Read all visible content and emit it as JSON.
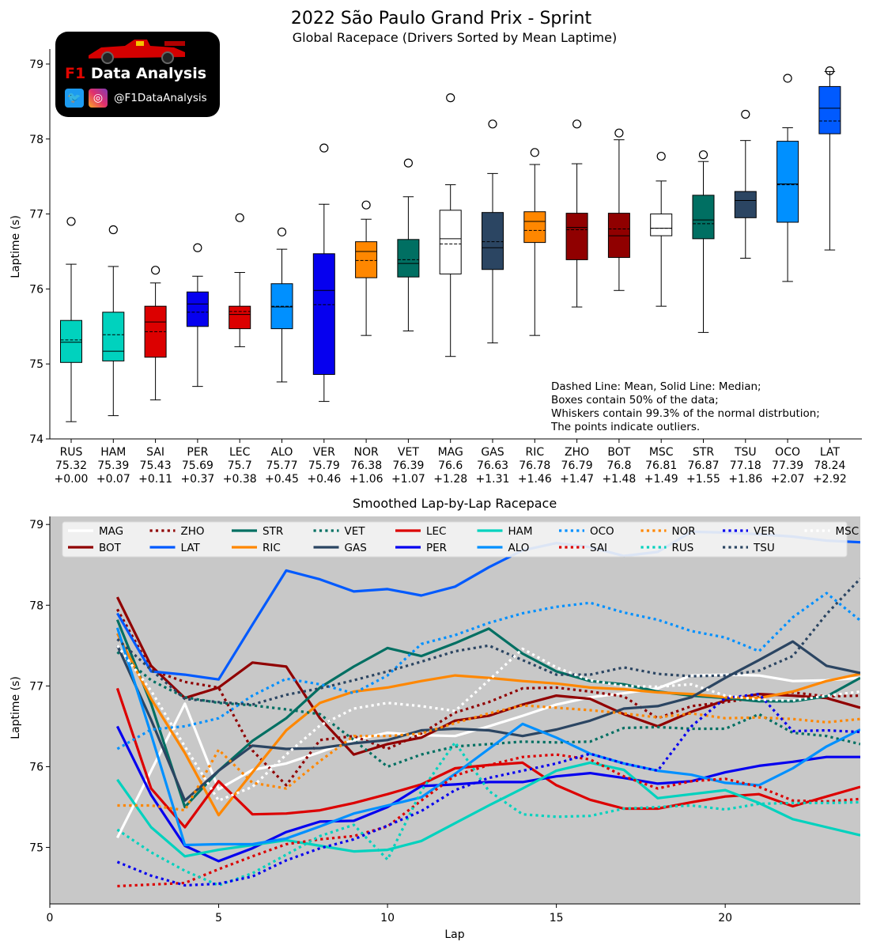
{
  "figure": {
    "title": "2022 São Paulo Grand Prix - Sprint",
    "subtitle": "Global Racepace (Drivers Sorted by Mean Laptime)",
    "logo_brand": "F1",
    "logo_title": "Data Analysis",
    "logo_handle": "@F1DataAnalysis"
  },
  "chart_data": [
    {
      "type": "box",
      "title": "Global Racepace (Drivers Sorted by Mean Laptime)",
      "xlabel": "",
      "ylabel": "Laptime (s)",
      "ylim": [
        74,
        79.2
      ],
      "yticks": [
        74,
        75,
        76,
        77,
        78,
        79
      ],
      "note_lines": [
        "Dashed Line: Mean, Solid Line: Median;",
        "Boxes contain 50% of the data;",
        "Whiskers contain 99.3% of the normal distrbution;",
        "The points indicate outliers."
      ],
      "drivers": [
        {
          "code": "RUS",
          "mean_label": "75.32",
          "delta": "+0.00",
          "color": "#00d2be",
          "whisker_low": 74.23,
          "q1": 75.02,
          "median": 75.29,
          "mean": 75.32,
          "q3": 75.58,
          "whisker_high": 76.33,
          "outliers": [
            76.9
          ]
        },
        {
          "code": "HAM",
          "mean_label": "75.39",
          "delta": "+0.07",
          "color": "#00d2be",
          "whisker_low": 74.31,
          "q1": 75.04,
          "median": 75.17,
          "mean": 75.39,
          "q3": 75.69,
          "whisker_high": 76.3,
          "outliers": [
            76.79
          ]
        },
        {
          "code": "SAI",
          "mean_label": "75.43",
          "delta": "+0.11",
          "color": "#dc0000",
          "whisker_low": 74.52,
          "q1": 75.09,
          "median": 75.56,
          "mean": 75.43,
          "q3": 75.77,
          "whisker_high": 76.08,
          "outliers": [
            76.25
          ]
        },
        {
          "code": "PER",
          "mean_label": "75.69",
          "delta": "+0.37",
          "color": "#0600ef",
          "whisker_low": 74.7,
          "q1": 75.5,
          "median": 75.8,
          "mean": 75.69,
          "q3": 75.96,
          "whisker_high": 76.17,
          "outliers": [
            76.55
          ]
        },
        {
          "code": "LEC",
          "mean_label": "75.7",
          "delta": "+0.38",
          "color": "#dc0000",
          "whisker_low": 75.23,
          "q1": 75.47,
          "median": 75.66,
          "mean": 75.7,
          "q3": 75.77,
          "whisker_high": 76.22,
          "outliers": [
            76.95
          ]
        },
        {
          "code": "ALO",
          "mean_label": "75.77",
          "delta": "+0.45",
          "color": "#0090ff",
          "whisker_low": 74.76,
          "q1": 75.47,
          "median": 75.76,
          "mean": 75.77,
          "q3": 76.07,
          "whisker_high": 76.53,
          "outliers": [
            76.76
          ]
        },
        {
          "code": "VER",
          "mean_label": "75.79",
          "delta": "+0.46",
          "color": "#0600ef",
          "whisker_low": 74.5,
          "q1": 74.86,
          "median": 75.98,
          "mean": 75.79,
          "q3": 76.47,
          "whisker_high": 77.13,
          "outliers": [
            77.88
          ]
        },
        {
          "code": "NOR",
          "mean_label": "76.38",
          "delta": "+1.06",
          "color": "#ff8700",
          "whisker_low": 75.38,
          "q1": 76.15,
          "median": 76.5,
          "mean": 76.38,
          "q3": 76.63,
          "whisker_high": 76.93,
          "outliers": [
            77.12
          ]
        },
        {
          "code": "VET",
          "mean_label": "76.39",
          "delta": "+1.07",
          "color": "#006f62",
          "whisker_low": 75.44,
          "q1": 76.16,
          "median": 76.34,
          "mean": 76.39,
          "q3": 76.66,
          "whisker_high": 77.23,
          "outliers": [
            77.68
          ]
        },
        {
          "code": "MAG",
          "mean_label": "76.6",
          "delta": "+1.28",
          "color": "#ffffff",
          "whisker_low": 75.1,
          "q1": 76.2,
          "median": 76.67,
          "mean": 76.6,
          "q3": 77.05,
          "whisker_high": 77.39,
          "outliers": [
            78.55
          ]
        },
        {
          "code": "GAS",
          "mean_label": "76.63",
          "delta": "+1.31",
          "color": "#2b4562",
          "whisker_low": 75.28,
          "q1": 76.26,
          "median": 76.55,
          "mean": 76.63,
          "q3": 77.02,
          "whisker_high": 77.54,
          "outliers": [
            78.2
          ]
        },
        {
          "code": "RIC",
          "mean_label": "76.78",
          "delta": "+1.46",
          "color": "#ff8700",
          "whisker_low": 75.38,
          "q1": 76.62,
          "median": 76.9,
          "mean": 76.78,
          "q3": 77.03,
          "whisker_high": 77.66,
          "outliers": [
            77.82
          ]
        },
        {
          "code": "ZHO",
          "mean_label": "76.79",
          "delta": "+1.47",
          "color": "#900000",
          "whisker_low": 75.76,
          "q1": 76.39,
          "median": 76.82,
          "mean": 76.79,
          "q3": 77.01,
          "whisker_high": 77.67,
          "outliers": [
            78.2
          ]
        },
        {
          "code": "BOT",
          "mean_label": "76.8",
          "delta": "+1.48",
          "color": "#900000",
          "whisker_low": 75.98,
          "q1": 76.42,
          "median": 76.71,
          "mean": 76.8,
          "q3": 77.01,
          "whisker_high": 77.99,
          "outliers": [
            78.08
          ]
        },
        {
          "code": "MSC",
          "mean_label": "76.81",
          "delta": "+1.49",
          "color": "#ffffff",
          "whisker_low": 75.77,
          "q1": 76.71,
          "median": 76.81,
          "mean": 76.81,
          "q3": 77.0,
          "whisker_high": 77.44,
          "outliers": [
            77.77
          ]
        },
        {
          "code": "STR",
          "mean_label": "76.87",
          "delta": "+1.55",
          "color": "#006f62",
          "whisker_low": 75.42,
          "q1": 76.67,
          "median": 76.92,
          "mean": 76.87,
          "q3": 77.25,
          "whisker_high": 77.7,
          "outliers": [
            77.79
          ]
        },
        {
          "code": "TSU",
          "mean_label": "77.18",
          "delta": "+1.86",
          "color": "#2b4562",
          "whisker_low": 76.41,
          "q1": 76.95,
          "median": 77.18,
          "mean": 77.18,
          "q3": 77.3,
          "whisker_high": 77.98,
          "outliers": [
            78.33
          ]
        },
        {
          "code": "OCO",
          "mean_label": "77.39",
          "delta": "+2.07",
          "color": "#0090ff",
          "whisker_low": 76.1,
          "q1": 76.89,
          "median": 77.4,
          "mean": 77.39,
          "q3": 77.97,
          "whisker_high": 78.15,
          "outliers": [
            78.81
          ]
        },
        {
          "code": "LAT",
          "mean_label": "78.24",
          "delta": "+2.92",
          "color": "#005aff",
          "whisker_low": 76.52,
          "q1": 78.07,
          "median": 78.41,
          "mean": 78.24,
          "q3": 78.7,
          "whisker_high": 78.9,
          "outliers": [
            78.91
          ]
        }
      ]
    },
    {
      "type": "line",
      "title": "Smoothed Lap-by-Lap Racepace",
      "xlabel": "Lap",
      "ylabel": "Laptime (s)",
      "xlim": [
        0,
        24
      ],
      "ylim": [
        74.3,
        79.1
      ],
      "xticks": [
        0,
        5,
        10,
        15,
        20
      ],
      "yticks": [
        75,
        76,
        77,
        78,
        79
      ],
      "background": "#c8c8c8",
      "x": [
        2,
        3,
        4,
        5,
        6,
        7,
        8,
        9,
        10,
        11,
        12,
        13,
        14,
        15,
        16,
        17,
        18,
        19,
        20,
        21,
        22,
        23,
        24
      ],
      "series": [
        {
          "name": "MAG",
          "color": "#ffffff",
          "style": "solid",
          "values": [
            75.12,
            75.95,
            76.78,
            75.72,
            75.96,
            76.04,
            76.18,
            76.33,
            76.42,
            76.39,
            76.38,
            76.5,
            76.63,
            76.77,
            76.86,
            76.91,
            76.97,
            77.13,
            77.14,
            77.13,
            77.06,
            77.07,
            77.1
          ]
        },
        {
          "name": "BOT",
          "color": "#900000",
          "style": "solid",
          "values": [
            78.1,
            77.25,
            76.85,
            76.98,
            77.29,
            77.24,
            76.6,
            76.15,
            76.28,
            76.36,
            76.57,
            76.63,
            76.77,
            76.88,
            76.84,
            76.65,
            76.5,
            76.68,
            76.82,
            76.9,
            76.88,
            76.85,
            76.73
          ]
        },
        {
          "name": "ZHO",
          "color": "#900000",
          "style": "dotted",
          "values": [
            77.95,
            77.2,
            77.05,
            76.98,
            76.2,
            75.77,
            76.33,
            76.38,
            76.22,
            76.41,
            76.67,
            76.8,
            76.97,
            76.98,
            76.93,
            76.87,
            76.6,
            76.75,
            76.8,
            76.86,
            76.92,
            76.87,
            76.88
          ]
        },
        {
          "name": "LAT",
          "color": "#005aff",
          "style": "solid",
          "values": [
            77.9,
            77.18,
            77.14,
            77.08,
            77.76,
            78.43,
            78.32,
            78.17,
            78.2,
            78.12,
            78.23,
            78.47,
            78.68,
            78.77,
            78.72,
            78.61,
            78.66,
            78.91,
            78.9,
            78.88,
            78.85,
            78.8,
            78.78
          ]
        },
        {
          "name": "STR",
          "color": "#006f62",
          "style": "solid",
          "values": [
            77.82,
            76.78,
            75.5,
            75.95,
            76.32,
            76.6,
            76.98,
            77.24,
            77.47,
            77.37,
            77.53,
            77.71,
            77.4,
            77.18,
            77.06,
            77.02,
            76.93,
            76.88,
            76.85,
            76.81,
            76.81,
            76.87,
            77.1
          ]
        },
        {
          "name": "RIC",
          "color": "#ff8700",
          "style": "solid",
          "values": [
            77.65,
            76.84,
            76.17,
            75.4,
            75.93,
            76.45,
            76.79,
            76.93,
            76.98,
            77.06,
            77.13,
            77.1,
            77.06,
            77.03,
            76.98,
            76.96,
            76.92,
            76.9,
            76.86,
            76.85,
            76.93,
            77.06,
            77.15
          ]
        },
        {
          "name": "VET",
          "color": "#006f62",
          "style": "dotted",
          "values": [
            77.42,
            77.07,
            76.86,
            76.79,
            76.76,
            76.71,
            76.65,
            76.33,
            76.0,
            76.15,
            76.25,
            76.28,
            76.31,
            76.3,
            76.31,
            76.48,
            76.49,
            76.47,
            76.47,
            76.65,
            76.42,
            76.38,
            76.28
          ]
        },
        {
          "name": "GAS",
          "color": "#2b4562",
          "style": "solid",
          "values": [
            77.5,
            76.58,
            75.58,
            75.95,
            76.26,
            76.22,
            76.23,
            76.29,
            76.33,
            76.45,
            76.47,
            76.45,
            76.38,
            76.46,
            76.57,
            76.72,
            76.75,
            76.86,
            77.1,
            77.32,
            77.55,
            77.25,
            77.16
          ]
        },
        {
          "name": "LEC",
          "color": "#dc0000",
          "style": "solid",
          "values": [
            76.97,
            75.73,
            75.25,
            75.82,
            75.41,
            75.42,
            75.46,
            75.55,
            75.66,
            75.78,
            75.98,
            76.02,
            76.05,
            75.77,
            75.59,
            75.48,
            75.48,
            75.56,
            75.63,
            75.66,
            75.51,
            75.63,
            75.75
          ]
        },
        {
          "name": "PER",
          "color": "#0600ef",
          "style": "solid",
          "values": [
            76.5,
            75.65,
            75.02,
            74.83,
            74.99,
            75.19,
            75.32,
            75.33,
            75.5,
            75.76,
            75.78,
            75.81,
            75.81,
            75.88,
            75.92,
            75.86,
            75.79,
            75.82,
            75.93,
            76.01,
            76.06,
            76.12,
            76.12
          ]
        },
        {
          "name": "HAM",
          "color": "#00d2be",
          "style": "solid",
          "values": [
            75.84,
            75.25,
            74.89,
            74.97,
            75.03,
            75.09,
            75.02,
            74.95,
            74.97,
            75.08,
            75.3,
            75.52,
            75.73,
            75.95,
            76.05,
            75.96,
            75.61,
            75.66,
            75.71,
            75.55,
            75.35,
            75.25,
            75.15
          ]
        },
        {
          "name": "ALO",
          "color": "#0090ff",
          "style": "solid",
          "values": [
            77.72,
            76.4,
            75.03,
            75.04,
            75.04,
            75.11,
            75.26,
            75.42,
            75.52,
            75.62,
            75.91,
            76.22,
            76.53,
            76.36,
            76.16,
            76.04,
            75.95,
            75.9,
            75.8,
            75.77,
            75.98,
            76.25,
            76.46
          ]
        },
        {
          "name": "OCO",
          "color": "#0090ff",
          "style": "dotted",
          "values": [
            76.22,
            76.46,
            76.5,
            76.6,
            76.88,
            77.09,
            77.02,
            76.91,
            77.13,
            77.52,
            77.63,
            77.78,
            77.9,
            77.98,
            78.03,
            77.91,
            77.82,
            77.68,
            77.6,
            77.43,
            77.85,
            78.15,
            77.81
          ]
        },
        {
          "name": "SAI",
          "color": "#dc0000",
          "style": "dotted",
          "values": [
            74.52,
            74.54,
            74.56,
            74.73,
            74.89,
            75.04,
            75.1,
            75.14,
            75.26,
            75.58,
            75.89,
            76.02,
            76.12,
            76.15,
            76.09,
            75.88,
            75.73,
            75.82,
            75.85,
            75.75,
            75.58,
            75.57,
            75.6
          ]
        },
        {
          "name": "NOR",
          "color": "#ff8700",
          "style": "dotted",
          "values": [
            75.52,
            75.52,
            75.46,
            76.21,
            75.8,
            75.73,
            76.07,
            76.38,
            76.38,
            76.41,
            76.54,
            76.66,
            76.76,
            76.73,
            76.7,
            76.66,
            76.61,
            76.66,
            76.6,
            76.61,
            76.59,
            76.55,
            76.59
          ]
        },
        {
          "name": "RUS",
          "color": "#00d2be",
          "style": "dotted",
          "values": [
            75.22,
            74.94,
            74.71,
            74.53,
            74.68,
            74.91,
            75.14,
            75.28,
            74.85,
            75.7,
            76.3,
            75.7,
            75.41,
            75.38,
            75.39,
            75.48,
            75.5,
            75.52,
            75.47,
            75.54,
            75.55,
            75.55,
            75.56
          ]
        },
        {
          "name": "VER",
          "color": "#0600ef",
          "style": "dotted",
          "values": [
            74.82,
            74.65,
            74.53,
            74.55,
            74.64,
            74.84,
            74.99,
            75.1,
            75.27,
            75.45,
            75.71,
            75.86,
            75.95,
            76.04,
            76.16,
            76.04,
            75.95,
            76.5,
            76.85,
            76.9,
            76.44,
            76.45,
            76.43
          ]
        },
        {
          "name": "TSU",
          "color": "#2b4562",
          "style": "dotted",
          "values": [
            77.58,
            77.2,
            76.84,
            76.8,
            76.77,
            76.89,
            76.97,
            77.07,
            77.18,
            77.3,
            77.43,
            77.5,
            77.32,
            77.14,
            77.14,
            77.23,
            77.15,
            77.12,
            77.13,
            77.19,
            77.37,
            77.89,
            78.33
          ]
        },
        {
          "name": "MSC",
          "color": "#ffffff",
          "style": "dotted",
          "values": [
            77.5,
            76.94,
            76.25,
            75.58,
            75.75,
            76.15,
            76.51,
            76.72,
            76.79,
            76.75,
            76.69,
            77.07,
            77.46,
            77.23,
            77.07,
            77.0,
            76.99,
            77.02,
            76.88,
            76.83,
            76.82,
            76.88,
            76.93
          ]
        }
      ]
    }
  ]
}
